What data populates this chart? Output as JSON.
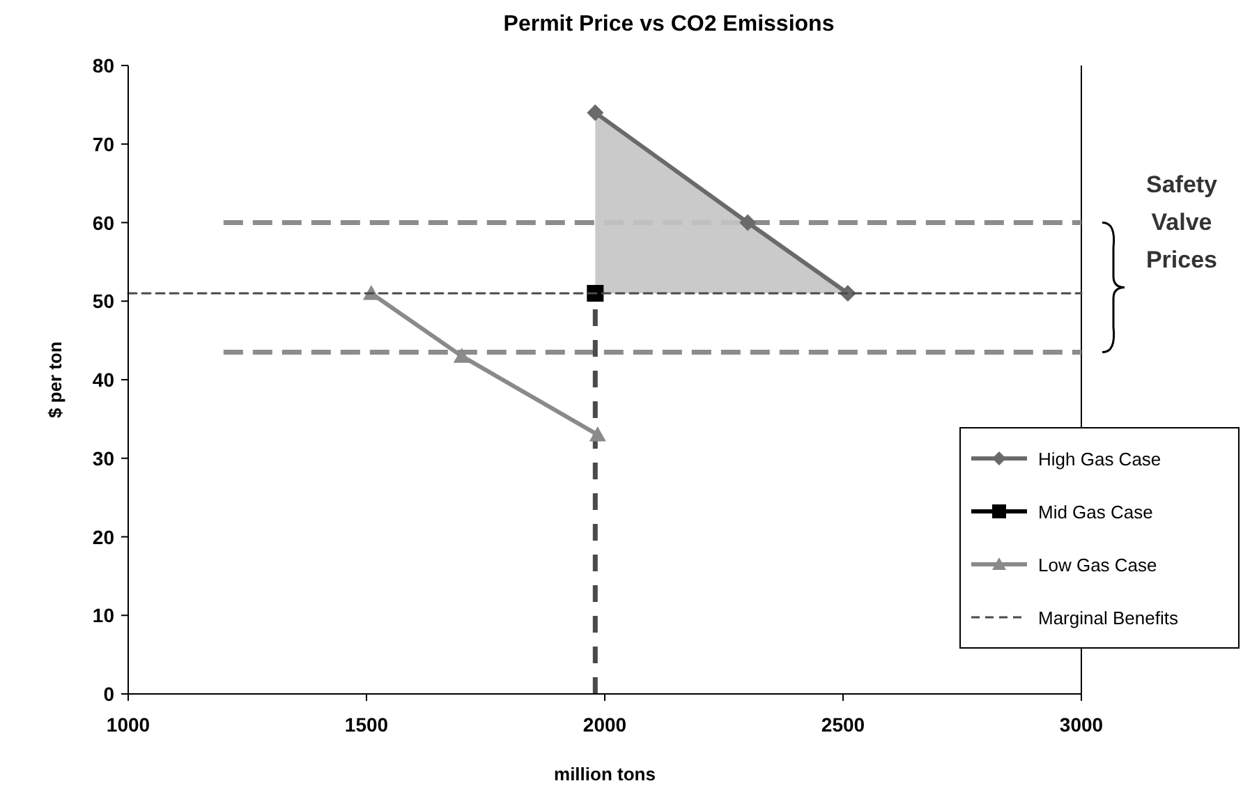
{
  "chart_data": {
    "type": "line",
    "title": "Permit Price vs CO2 Emissions",
    "xlabel": "million tons",
    "ylabel": "$ per ton",
    "xlim": [
      1000,
      3000
    ],
    "xticks": [
      1000,
      1500,
      2000,
      2500,
      3000
    ],
    "ylim": [
      0,
      80
    ],
    "yticks": [
      0,
      10,
      20,
      30,
      40,
      50,
      60,
      70,
      80
    ],
    "grid": false,
    "legend": "bottom right",
    "series": [
      {
        "name": "High Gas Case",
        "x": [
          1980,
          2300,
          2510
        ],
        "values": [
          74,
          60,
          51
        ],
        "lower": [
          51,
          51,
          51
        ],
        "upper": [
          74,
          60,
          51
        ],
        "color": "#6a6a6a",
        "marker": "diamond",
        "line_style": "solid"
      },
      {
        "name": "Mid Gas Case",
        "x": [
          1980
        ],
        "values": [
          51
        ],
        "color": "#000000",
        "marker": "square",
        "line_style": "solid"
      },
      {
        "name": "Low Gas Case",
        "x": [
          1510,
          1700,
          1985
        ],
        "values": [
          51,
          43,
          33
        ],
        "color": "#8a8a8a",
        "marker": "triangle",
        "line_style": "solid"
      },
      {
        "name": "Marginal Benefits",
        "x": [
          1000,
          3000
        ],
        "values": [
          51,
          51
        ],
        "color": "#4a4a4a",
        "marker": "none",
        "line_style": "dashed"
      }
    ],
    "ref_lines": [
      {
        "axis": "y",
        "value": 60,
        "color": "#8c8c8c",
        "line_style": "dashed"
      },
      {
        "axis": "y",
        "value": 43.5,
        "color": "#8c8c8c",
        "line_style": "dashed"
      },
      {
        "axis": "x",
        "value": 1980,
        "color": "#4a4a4a",
        "line_style": "dashed"
      }
    ],
    "annotations": [
      "Safety Valve Prices"
    ]
  }
}
